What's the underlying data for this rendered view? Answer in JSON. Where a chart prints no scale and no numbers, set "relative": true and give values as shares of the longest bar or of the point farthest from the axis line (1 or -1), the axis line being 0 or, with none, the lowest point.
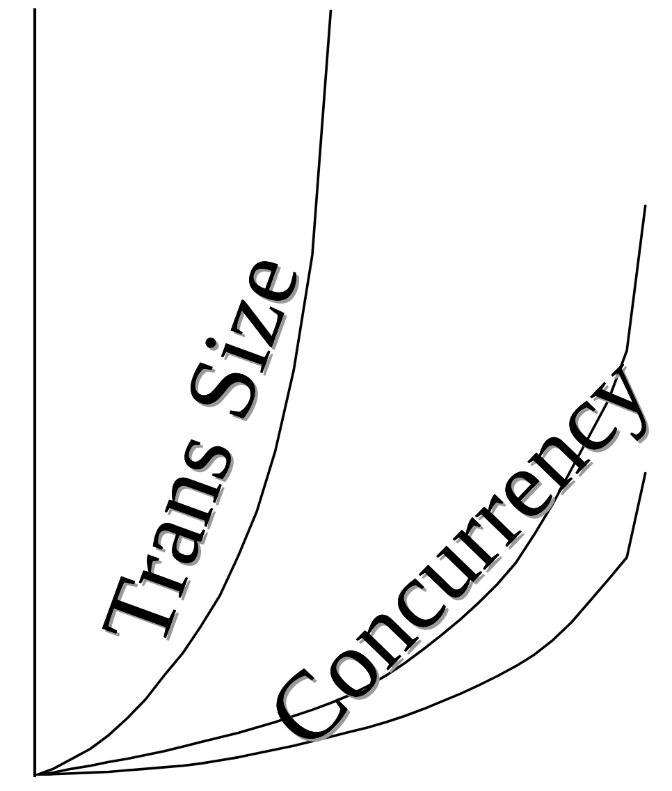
{
  "chart_data": {
    "type": "line",
    "relative": true,
    "categories": [
      null,
      null,
      null,
      null,
      null,
      null,
      null,
      null,
      null,
      null,
      null,
      null,
      null,
      null,
      null,
      null,
      null,
      null,
      null,
      null,
      null,
      null,
      null,
      null,
      null,
      null,
      null,
      null,
      null,
      null,
      null,
      null,
      null,
      null
    ],
    "series": [
      {
        "name": "Trans Size",
        "color": "#000000",
        "values": [
          0,
          0.009,
          0.022,
          0.035,
          0.053,
          0.075,
          0.1,
          0.131,
          0.16,
          0.196,
          0.235,
          0.287,
          0.345,
          0.424,
          0.53,
          0.68,
          1.0,
          null,
          null,
          null,
          null,
          null,
          null,
          null,
          null,
          null,
          null,
          null,
          null,
          null,
          null,
          null,
          null,
          null
        ]
      },
      {
        "name": "Concurrency",
        "color": "#000000",
        "values": [
          0,
          0.004,
          0.009,
          0.013,
          0.018,
          0.022,
          0.027,
          0.032,
          0.038,
          0.044,
          0.05,
          0.056,
          0.063,
          0.07,
          0.078,
          0.086,
          0.095,
          0.105,
          0.117,
          0.131,
          0.147,
          0.165,
          0.184,
          0.204,
          0.226,
          0.25,
          0.278,
          0.315,
          0.355,
          0.4,
          0.445,
          0.49,
          0.555,
          0.744
        ]
      },
      {
        "color": "#000000",
        "values": [
          0,
          0.002,
          0.003,
          0.004,
          0.005,
          0.007,
          0.009,
          0.011,
          0.013,
          0.016,
          0.02,
          0.024,
          0.029,
          0.034,
          0.039,
          0.045,
          0.051,
          0.057,
          0.063,
          0.07,
          0.078,
          0.087,
          0.097,
          0.107,
          0.118,
          0.13,
          0.143,
          0.158,
          0.177,
          0.2,
          0.228,
          0.256,
          0.285,
          0.395
        ]
      }
    ]
  }
}
